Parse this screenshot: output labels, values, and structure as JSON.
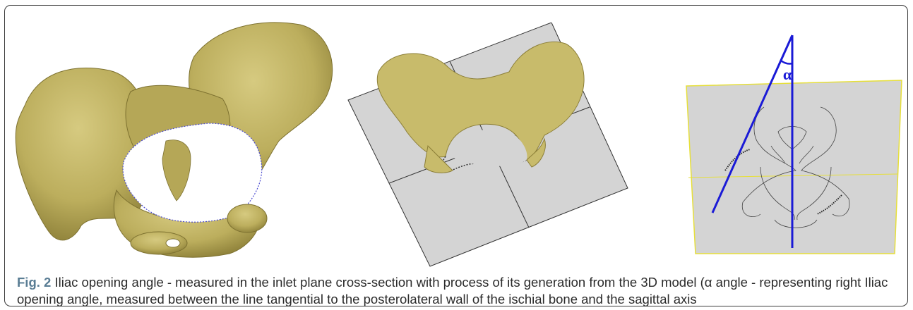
{
  "figure": {
    "label": "Fig. 2",
    "caption": "Iliac opening angle - measured in the inlet plane cross-section with process of its generation from the 3D model (α angle - representing right Iliac opening angle, measured between the line tangential to the posterolateral wall of the ischial bone and the sagittal axis",
    "angle_label": "α"
  },
  "colors": {
    "bone": "#c2b465",
    "bone_shadow": "#8c7f38",
    "plane": "#d4d4d4",
    "plane_border_yellow": "#e6df3a",
    "axis_line": "#1a1ad6",
    "caption_label": "#5a7d94"
  }
}
